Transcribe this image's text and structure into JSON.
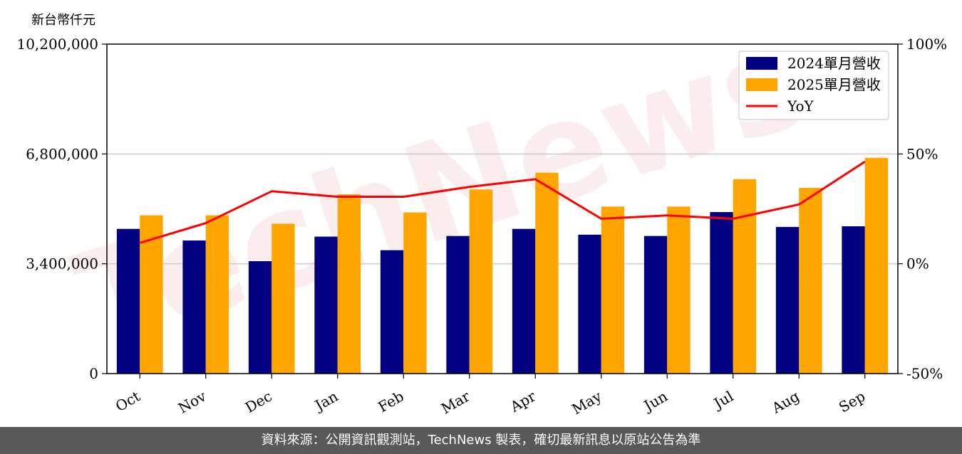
{
  "unit_label": "新台幣仟元",
  "footer": "資料來源：公開資訊觀測站，TechNews 製表，確切最新訊息以原站公告為準",
  "watermark": "TechNews",
  "colors": {
    "bar_2024": "#000080",
    "bar_2025": "#FFA500",
    "yoy": "#FF0000",
    "grid": "#cccccc",
    "footer_bg": "#595959",
    "watermark": "#f7dede"
  },
  "chart_data": {
    "type": "bar",
    "categories": [
      "Oct",
      "Nov",
      "Dec",
      "Jan",
      "Feb",
      "Mar",
      "Apr",
      "May",
      "Jun",
      "Jul",
      "Aug",
      "Sep"
    ],
    "series": [
      {
        "name": "2024單月營收",
        "type": "bar",
        "axis": "left",
        "values": [
          4480000,
          4120000,
          3480000,
          4240000,
          3820000,
          4260000,
          4480000,
          4300000,
          4260000,
          5000000,
          4540000,
          4560000
        ]
      },
      {
        "name": "2025單月營收",
        "type": "bar",
        "axis": "left",
        "values": [
          4900000,
          4900000,
          4640000,
          5550000,
          4990000,
          5700000,
          6220000,
          5170000,
          5170000,
          6020000,
          5750000,
          6680000
        ]
      },
      {
        "name": "YoY",
        "type": "line",
        "axis": "right",
        "values": [
          9.5,
          18.5,
          33.0,
          30.5,
          30.5,
          35.0,
          38.5,
          20.5,
          22.0,
          20.5,
          27.0,
          46.5
        ]
      }
    ],
    "y_left": {
      "ticks": [
        "0",
        "3,400,000",
        "6,800,000",
        "10,200,000"
      ],
      "ylim": [
        0,
        10200000
      ]
    },
    "y_right": {
      "ticks": [
        "-50%",
        "0%",
        "50%",
        "100%"
      ],
      "ylim": [
        -50,
        100
      ]
    },
    "legend_position": "top-right",
    "grid": "horizontal"
  }
}
